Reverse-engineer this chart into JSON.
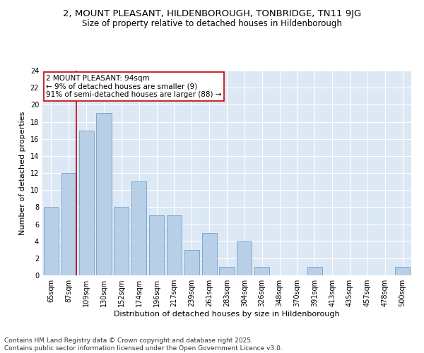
{
  "title": "2, MOUNT PLEASANT, HILDENBOROUGH, TONBRIDGE, TN11 9JG",
  "subtitle": "Size of property relative to detached houses in Hildenborough",
  "xlabel": "Distribution of detached houses by size in Hildenborough",
  "ylabel": "Number of detached properties",
  "categories": [
    "65sqm",
    "87sqm",
    "109sqm",
    "130sqm",
    "152sqm",
    "174sqm",
    "196sqm",
    "217sqm",
    "239sqm",
    "261sqm",
    "283sqm",
    "304sqm",
    "326sqm",
    "348sqm",
    "370sqm",
    "391sqm",
    "413sqm",
    "435sqm",
    "457sqm",
    "478sqm",
    "500sqm"
  ],
  "values": [
    8,
    12,
    17,
    19,
    8,
    11,
    7,
    7,
    3,
    5,
    1,
    4,
    1,
    0,
    0,
    1,
    0,
    0,
    0,
    0,
    1
  ],
  "bar_color": "#b8cfe8",
  "bar_edge_color": "#6fa0cc",
  "background_color": "#dde8f5",
  "grid_color": "#ffffff",
  "annotation_box_color": "#cc0000",
  "annotation_text": "2 MOUNT PLEASANT: 94sqm\n← 9% of detached houses are smaller (9)\n91% of semi-detached houses are larger (88) →",
  "vline_color": "#cc0000",
  "vline_x_index": 1,
  "ylim": [
    0,
    24
  ],
  "yticks": [
    0,
    2,
    4,
    6,
    8,
    10,
    12,
    14,
    16,
    18,
    20,
    22,
    24
  ],
  "footnote": "Contains HM Land Registry data © Crown copyright and database right 2025.\nContains public sector information licensed under the Open Government Licence v3.0.",
  "title_fontsize": 9.5,
  "subtitle_fontsize": 8.5,
  "axis_label_fontsize": 8,
  "tick_fontsize": 7,
  "annotation_fontsize": 7.5,
  "footnote_fontsize": 6.5
}
